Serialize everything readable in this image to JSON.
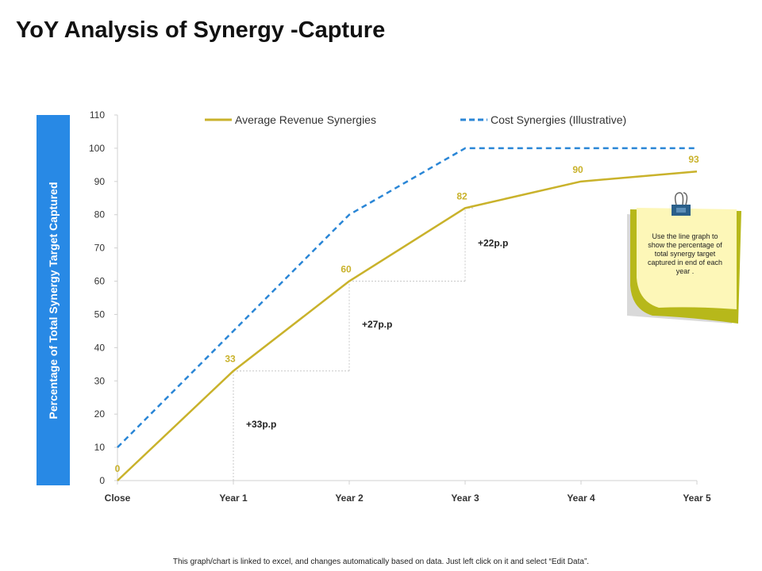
{
  "page": {
    "title": "YoY Analysis of Synergy -Capture",
    "footer": "This graph/chart is linked to excel, and changes automatically based on data. Just left click on it and select “Edit Data”."
  },
  "note": {
    "text": "Use the line graph to show the percentage of total synergy target captured in end of each year ."
  },
  "chart_data": {
    "type": "line",
    "title": "",
    "xlabel": "",
    "ylabel": "Percentage of Total Synergy Target Captured",
    "categories": [
      "Close",
      "Year 1",
      "Year 2",
      "Year 3",
      "Year 4",
      "Year 5"
    ],
    "ylim": [
      0,
      110
    ],
    "yticks": [
      0,
      10,
      20,
      30,
      40,
      50,
      60,
      70,
      80,
      90,
      100,
      110
    ],
    "grid": false,
    "legend": "top",
    "series": [
      {
        "name": "Average Revenue Synergies",
        "values": [
          0,
          33,
          60,
          82,
          90,
          93
        ],
        "data_labels": [
          "0",
          "33",
          "60",
          "82",
          "90",
          "93"
        ],
        "color": "#c9b22b",
        "style": "solid"
      },
      {
        "name": "Cost Synergies (Illustrative)",
        "values": [
          10,
          45,
          80,
          100,
          100,
          100
        ],
        "color": "#2a86d6",
        "style": "dashed"
      }
    ],
    "annotations": [
      {
        "text": "+33p.p",
        "x_index": 1,
        "from": 0,
        "to": 33
      },
      {
        "text": "+27p.p",
        "x_index": 2,
        "from": 33,
        "to": 60
      },
      {
        "text": "+22p.p",
        "x_index": 3,
        "from": 60,
        "to": 82
      }
    ]
  }
}
